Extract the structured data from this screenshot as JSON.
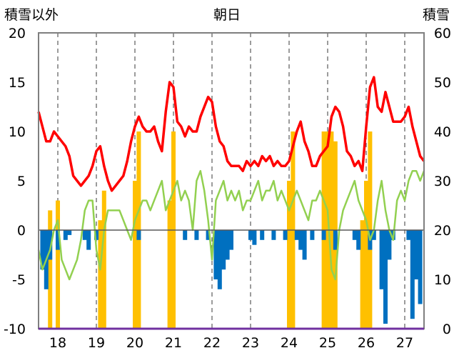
{
  "chart_data": {
    "type": "line",
    "title": "朝日",
    "ylabel_left": "積雪以外",
    "ylabel_right": "積雪",
    "x_categories": [
      "18",
      "19",
      "20",
      "21",
      "22",
      "23",
      "24",
      "25",
      "26",
      "27"
    ],
    "x_range": [
      17.5,
      27.5
    ],
    "ylim_left": [
      -10,
      20
    ],
    "ylim_right": [
      0,
      60
    ],
    "left_ticks": [
      "20",
      "15",
      "10",
      "5",
      "0",
      "-5",
      "-10"
    ],
    "right_ticks": [
      "60",
      "50",
      "40",
      "30",
      "20",
      "10",
      "0"
    ],
    "grid": "dashed vertical at each day",
    "series": [
      {
        "axis": "right",
        "kind": "line",
        "color": "#ff0000",
        "x": [
          17.5,
          17.6,
          17.7,
          17.8,
          17.9,
          18.0,
          18.1,
          18.2,
          18.3,
          18.4,
          18.5,
          18.6,
          18.7,
          18.8,
          18.9,
          19.0,
          19.1,
          19.2,
          19.3,
          19.4,
          19.5,
          19.6,
          19.7,
          19.8,
          19.9,
          20.0,
          20.1,
          20.2,
          20.3,
          20.4,
          20.5,
          20.6,
          20.7,
          20.8,
          20.9,
          21.0,
          21.1,
          21.2,
          21.3,
          21.4,
          21.5,
          21.6,
          21.7,
          21.8,
          21.9,
          22.0,
          22.1,
          22.2,
          22.3,
          22.4,
          22.5,
          22.6,
          22.7,
          22.8,
          22.9,
          23.0,
          23.1,
          23.2,
          23.3,
          23.4,
          23.5,
          23.6,
          23.7,
          23.8,
          23.9,
          24.0,
          24.1,
          24.2,
          24.3,
          24.4,
          24.5,
          24.6,
          24.7,
          24.8,
          24.9,
          25.0,
          25.1,
          25.2,
          25.3,
          25.4,
          25.5,
          25.6,
          25.7,
          25.8,
          25.9,
          26.0,
          26.1,
          26.2,
          26.3,
          26.4,
          26.5,
          26.6,
          26.7,
          26.8,
          26.9,
          27.0,
          27.1,
          27.2,
          27.3,
          27.4,
          27.5
        ],
        "values": [
          44,
          41,
          38,
          38,
          40,
          39,
          38,
          37,
          35,
          31,
          30,
          29,
          30,
          31,
          33,
          36,
          37,
          33,
          30,
          28,
          29,
          30,
          31,
          34,
          38,
          41,
          43,
          41,
          40,
          40,
          41,
          38,
          36,
          44,
          50,
          49,
          42,
          41,
          39,
          41,
          40,
          40,
          43,
          45,
          47,
          46,
          41,
          38,
          37,
          34,
          33,
          33,
          33,
          32,
          34,
          33,
          34,
          33,
          35,
          34,
          35,
          33,
          34,
          33,
          33,
          34,
          37,
          40,
          42,
          38,
          36,
          33,
          33,
          35,
          36,
          37,
          43,
          45,
          44,
          41,
          36,
          35,
          33,
          34,
          32,
          41,
          49,
          51,
          45,
          44,
          48,
          45,
          42,
          42,
          42,
          43,
          45,
          41,
          38,
          35,
          34
        ]
      },
      {
        "axis": "left",
        "kind": "line",
        "color": "#92d050",
        "x": [
          17.5,
          17.6,
          17.7,
          17.8,
          17.9,
          18.0,
          18.1,
          18.2,
          18.3,
          18.4,
          18.5,
          18.6,
          18.7,
          18.8,
          18.9,
          19.0,
          19.1,
          19.2,
          19.3,
          19.4,
          19.5,
          19.6,
          19.7,
          19.8,
          19.9,
          20.0,
          20.1,
          20.2,
          20.3,
          20.4,
          20.5,
          20.6,
          20.7,
          20.8,
          20.9,
          21.0,
          21.1,
          21.2,
          21.3,
          21.4,
          21.5,
          21.6,
          21.7,
          21.8,
          21.9,
          22.0,
          22.1,
          22.2,
          22.3,
          22.4,
          22.5,
          22.6,
          22.7,
          22.8,
          22.9,
          23.0,
          23.1,
          23.2,
          23.3,
          23.4,
          23.5,
          23.6,
          23.7,
          23.8,
          23.9,
          24.0,
          24.1,
          24.2,
          24.3,
          24.4,
          24.5,
          24.6,
          24.7,
          24.8,
          24.9,
          25.0,
          25.1,
          25.2,
          25.3,
          25.4,
          25.5,
          25.6,
          25.7,
          25.8,
          25.9,
          26.0,
          26.1,
          26.2,
          26.3,
          26.4,
          26.5,
          26.6,
          26.7,
          26.8,
          26.9,
          27.0,
          27.1,
          27.2,
          27.3,
          27.4,
          27.5
        ],
        "values": [
          -2,
          -4,
          -3,
          -2,
          0,
          1,
          -3,
          -4,
          -5,
          -4,
          -3,
          -1,
          2,
          3,
          3,
          -2,
          -4,
          0,
          2,
          2,
          2,
          2,
          1,
          0,
          -1,
          1,
          2,
          3,
          3,
          2,
          3,
          4,
          5,
          2,
          3,
          4,
          5,
          3,
          4,
          3,
          0,
          5,
          6,
          4,
          1,
          -3,
          3,
          4,
          5,
          3,
          4,
          3,
          4,
          2,
          3,
          3,
          4,
          5,
          3,
          4,
          4,
          5,
          3,
          4,
          3,
          2,
          3,
          4,
          3,
          2,
          1,
          3,
          3,
          4,
          3,
          2,
          -4,
          -5,
          0,
          2,
          3,
          4,
          5,
          3,
          2,
          1,
          -1,
          0,
          3,
          5,
          2,
          0,
          -1,
          3,
          4,
          3,
          5,
          6,
          6,
          5,
          6
        ]
      },
      {
        "axis": "right",
        "kind": "bar",
        "color": "#ffc000",
        "x": [
          17.8,
          18.0,
          19.1,
          19.2,
          20.0,
          20.1,
          20.9,
          21.0,
          24.0,
          24.1,
          24.9,
          25.0,
          25.1,
          25.2,
          25.9,
          26.0,
          26.1
        ],
        "values": [
          24,
          26,
          22,
          28,
          30,
          40,
          26,
          40,
          30,
          40,
          40,
          40,
          40,
          38,
          22,
          30,
          40
        ]
      },
      {
        "axis": "left",
        "kind": "bar",
        "color": "#0070c0",
        "x": [
          17.6,
          17.7,
          17.8,
          18.0,
          18.2,
          18.3,
          18.7,
          18.8,
          19.0,
          20.1,
          21.3,
          21.6,
          21.9,
          22.1,
          22.2,
          22.3,
          22.4,
          22.5,
          23.0,
          23.1,
          23.3,
          23.6,
          23.9,
          24.2,
          24.3,
          24.4,
          24.6,
          24.9,
          25.2,
          25.7,
          25.8,
          26.1,
          26.2,
          26.4,
          26.5,
          26.6,
          26.7,
          27.1,
          27.2,
          27.3,
          27.4
        ],
        "values": [
          -4,
          -6,
          -3,
          -2,
          -1,
          -0.5,
          -1,
          -2,
          -1,
          -1,
          -1,
          -1,
          -1,
          -5,
          -6,
          -4,
          -3,
          -2,
          -1,
          -1.5,
          -1,
          -1,
          -1,
          -1,
          -2,
          -3,
          -1,
          -1,
          -2,
          -1,
          -2,
          -2,
          -1,
          -6,
          -9.5,
          -3,
          -1,
          -1,
          -9,
          -5,
          -7.5
        ]
      }
    ]
  }
}
